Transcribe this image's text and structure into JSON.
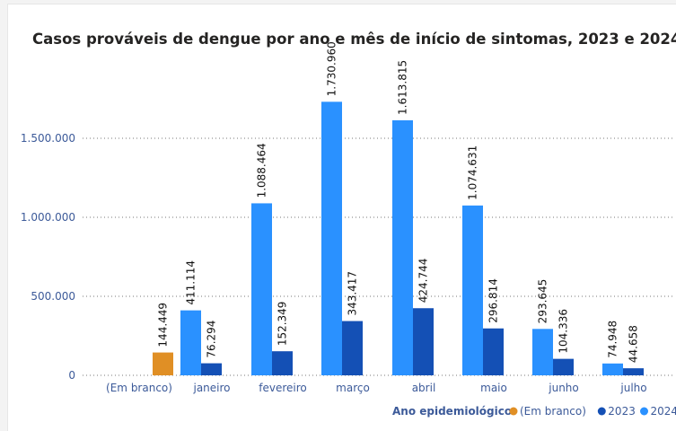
{
  "chart_data": {
    "type": "bar",
    "title": "Casos prováveis de dengue por ano e mês de início de sintomas, 2023 e 2024",
    "xlabel": "",
    "ylabel": "",
    "categories": [
      "(Em branco)",
      "janeiro",
      "fevereiro",
      "março",
      "abril",
      "maio",
      "junho",
      "julho"
    ],
    "series": [
      {
        "name": "(Em branco)",
        "color": "#e08f25",
        "values": [
          144449,
          null,
          null,
          null,
          null,
          null,
          null,
          null
        ],
        "labels": [
          "144.449",
          null,
          null,
          null,
          null,
          null,
          null,
          null
        ]
      },
      {
        "name": "2024",
        "color": "#2a91ff",
        "values": [
          null,
          411114,
          1088464,
          1730960,
          1613815,
          1074631,
          293645,
          74948
        ],
        "labels": [
          null,
          "411.114",
          "1.088.464",
          "1.730.960",
          "1.613.815",
          "1.074.631",
          "293.645",
          "74.948"
        ]
      },
      {
        "name": "2023",
        "color": "#1450b5",
        "values": [
          null,
          76294,
          152349,
          343417,
          424744,
          296814,
          104336,
          44658
        ],
        "labels": [
          null,
          "76.294",
          "152.349",
          "343.417",
          "424.744",
          "296.814",
          "104.336",
          "44.658"
        ]
      }
    ],
    "yticks": [
      0,
      500000,
      1000000,
      1500000
    ],
    "ytick_labels": [
      "0",
      "500.000",
      "1.000.000",
      "1.500.000"
    ],
    "ylim": [
      0,
      1760000
    ],
    "grid": true,
    "legend": {
      "title": "Ano epidemiológico",
      "position": "bottom-right",
      "entries": [
        "(Em branco)",
        "2023",
        "2024"
      ]
    }
  }
}
